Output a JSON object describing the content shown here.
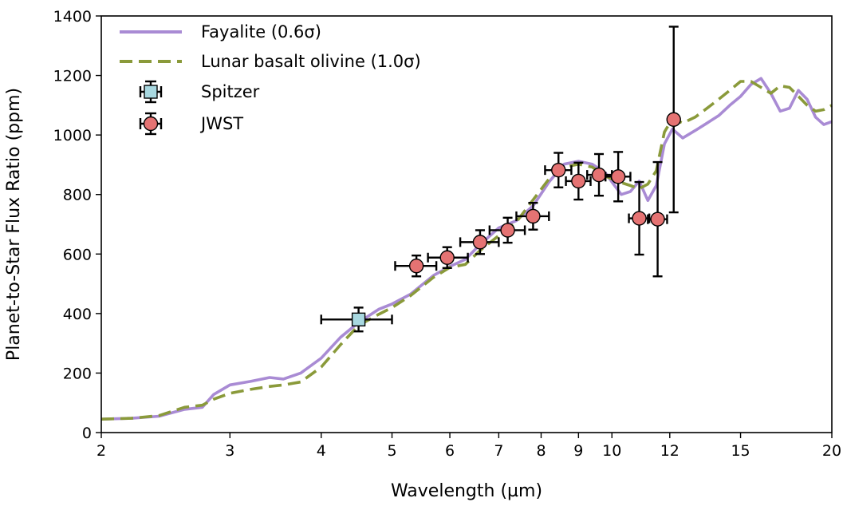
{
  "colors": {
    "fayalite": "#a98bd4",
    "basalt": "#8a9a3a",
    "spitzer": "#a8d8e0",
    "jwst": "#e57373",
    "errorbar": "#000000"
  },
  "chart_data": {
    "type": "line",
    "xlabel": "Wavelength (µm)",
    "ylabel": "Planet-to-Star Flux Ratio (ppm)",
    "xscale": "log",
    "xlim": [
      2,
      20
    ],
    "ylim": [
      0,
      1400
    ],
    "x_ticks": [
      2,
      3,
      4,
      5,
      6,
      7,
      8,
      9,
      10,
      12,
      15,
      20
    ],
    "x_tick_labels": [
      "2",
      "3",
      "4",
      "5",
      "6",
      "7",
      "8",
      "9",
      "10",
      "12",
      "15",
      "20"
    ],
    "y_ticks": [
      0,
      200,
      400,
      600,
      800,
      1000,
      1200,
      1400
    ],
    "y_tick_labels": [
      "0",
      "200",
      "400",
      "600",
      "800",
      "1000",
      "1200",
      "1400"
    ],
    "legend_position": "top-left",
    "legend": [
      {
        "label": "Fayalite (0.6σ)",
        "style": "solid-line"
      },
      {
        "label": "Lunar basalt olivine (1.0σ)",
        "style": "dashed-line"
      },
      {
        "label": "Spitzer",
        "style": "square-marker"
      },
      {
        "label": "JWST",
        "style": "circle-marker"
      }
    ],
    "series": [
      {
        "name": "Fayalite (0.6σ)",
        "style": "solid",
        "x": [
          2.0,
          2.2,
          2.4,
          2.6,
          2.75,
          2.85,
          3.0,
          3.2,
          3.4,
          3.55,
          3.75,
          4.0,
          4.25,
          4.5,
          4.8,
          5.0,
          5.3,
          5.7,
          6.0,
          6.3,
          6.6,
          7.0,
          7.4,
          7.8,
          8.2,
          8.6,
          9.0,
          9.4,
          9.8,
          10.0,
          10.3,
          10.6,
          10.9,
          11.2,
          11.5,
          11.8,
          12.1,
          12.5,
          13.0,
          13.5,
          14.0,
          14.5,
          15.0,
          15.5,
          16.0,
          16.5,
          17.0,
          17.5,
          18.0,
          18.5,
          19.0,
          19.5,
          20.0
        ],
        "y": [
          45,
          48,
          55,
          78,
          85,
          128,
          160,
          172,
          185,
          180,
          200,
          250,
          320,
          370,
          415,
          432,
          465,
          528,
          558,
          582,
          632,
          688,
          712,
          762,
          842,
          902,
          912,
          902,
          872,
          842,
          800,
          810,
          845,
          780,
          830,
          970,
          1020,
          990,
          1015,
          1040,
          1065,
          1100,
          1130,
          1170,
          1190,
          1140,
          1080,
          1090,
          1150,
          1120,
          1060,
          1035,
          1045
        ]
      },
      {
        "name": "Lunar basalt olivine (1.0σ)",
        "style": "dashed",
        "x": [
          2.0,
          2.2,
          2.4,
          2.6,
          2.75,
          2.85,
          3.0,
          3.2,
          3.4,
          3.55,
          3.75,
          4.0,
          4.25,
          4.5,
          4.8,
          5.0,
          5.3,
          5.7,
          6.0,
          6.3,
          6.6,
          7.0,
          7.4,
          7.8,
          8.2,
          8.6,
          9.0,
          9.4,
          9.8,
          10.0,
          10.3,
          10.6,
          10.9,
          11.2,
          11.5,
          11.8,
          12.1,
          12.5,
          13.0,
          13.5,
          14.0,
          14.5,
          15.0,
          15.5,
          16.0,
          16.5,
          17.0,
          17.5,
          18.0,
          18.5,
          19.0,
          19.5,
          20.0
        ],
        "y": [
          45,
          48,
          57,
          85,
          92,
          112,
          132,
          145,
          155,
          160,
          170,
          220,
          295,
          360,
          398,
          420,
          460,
          522,
          555,
          565,
          612,
          662,
          708,
          782,
          852,
          892,
          902,
          892,
          862,
          852,
          840,
          830,
          820,
          835,
          880,
          1010,
          1055,
          1040,
          1060,
          1090,
          1120,
          1150,
          1180,
          1180,
          1160,
          1140,
          1165,
          1160,
          1130,
          1100,
          1080,
          1085,
          1100
        ]
      }
    ],
    "points": [
      {
        "name": "Spitzer",
        "marker": "square",
        "x": 4.5,
        "y": 380,
        "xerr": [
          4.0,
          5.0
        ],
        "yerr": 40
      },
      {
        "name": "JWST",
        "marker": "circle",
        "x": 5.4,
        "y": 560,
        "xerr": [
          5.05,
          5.75
        ],
        "yerr": 35
      },
      {
        "name": "JWST",
        "marker": "circle",
        "x": 5.95,
        "y": 588,
        "xerr": [
          5.6,
          6.35
        ],
        "yerr": 35
      },
      {
        "name": "JWST",
        "marker": "circle",
        "x": 6.6,
        "y": 640,
        "xerr": [
          6.2,
          7.0
        ],
        "yerr": 40
      },
      {
        "name": "JWST",
        "marker": "circle",
        "x": 7.2,
        "y": 680,
        "xerr": [
          6.8,
          7.6
        ],
        "yerr": 42
      },
      {
        "name": "JWST",
        "marker": "circle",
        "x": 7.8,
        "y": 727,
        "xerr": [
          7.4,
          8.2
        ],
        "yerr": 45
      },
      {
        "name": "JWST",
        "marker": "circle",
        "x": 8.45,
        "y": 882,
        "xerr": [
          8.1,
          8.8
        ],
        "yerr": 58
      },
      {
        "name": "JWST",
        "marker": "circle",
        "x": 9.0,
        "y": 845,
        "xerr": [
          8.65,
          9.35
        ],
        "yerr": 62
      },
      {
        "name": "JWST",
        "marker": "circle",
        "x": 9.6,
        "y": 866,
        "xerr": [
          9.25,
          10.0
        ],
        "yerr": 70
      },
      {
        "name": "JWST",
        "marker": "circle",
        "x": 10.2,
        "y": 860,
        "xerr": [
          9.8,
          10.6
        ],
        "yerr": 83
      },
      {
        "name": "JWST",
        "marker": "circle",
        "x": 10.9,
        "y": 720,
        "xerr": [
          10.55,
          11.25
        ],
        "yerr": 122
      },
      {
        "name": "JWST",
        "marker": "circle",
        "x": 11.55,
        "y": 717,
        "xerr": [
          11.2,
          11.9
        ],
        "yerr": 192
      },
      {
        "name": "JWST",
        "marker": "circle",
        "x": 12.15,
        "y": 1052,
        "xerr": [
          12.15,
          12.15
        ],
        "yerr": 312
      }
    ]
  }
}
